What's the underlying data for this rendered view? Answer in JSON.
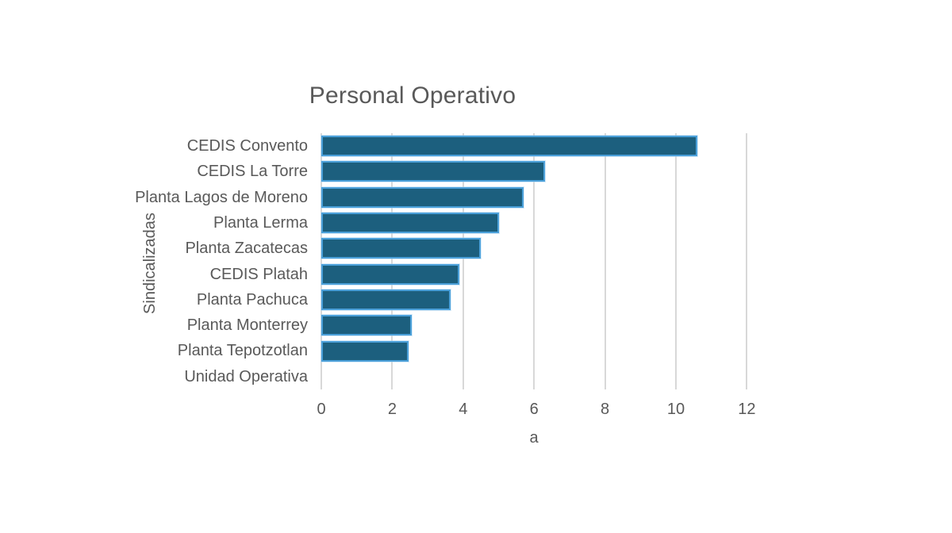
{
  "chart_data": {
    "type": "bar",
    "orientation": "horizontal",
    "title": "Personal Operativo",
    "xlabel": "a",
    "ylabel": "Sindicalizadas",
    "categories": [
      "CEDIS Convento",
      "CEDIS La Torre",
      "Planta Lagos de Moreno",
      "Planta Lerma",
      "Planta Zacatecas",
      "CEDIS Platah",
      "Planta Pachuca",
      "Planta Monterrey",
      "Planta Tepotzotlan",
      "Unidad Operativa"
    ],
    "values": [
      10.6,
      6.3,
      5.7,
      5.0,
      4.5,
      3.9,
      3.65,
      2.55,
      2.45,
      0
    ],
    "xlim": [
      0,
      12
    ],
    "xticks": [
      0,
      2,
      4,
      6,
      8,
      10,
      12
    ],
    "grid": "vertical-only",
    "legend": "none",
    "colors": {
      "bar_fill": "#1c5f7e",
      "bar_border": "#4ba0d9",
      "gridline": "#d8d8d8",
      "text": "#595959",
      "background": "#ffffff"
    }
  }
}
